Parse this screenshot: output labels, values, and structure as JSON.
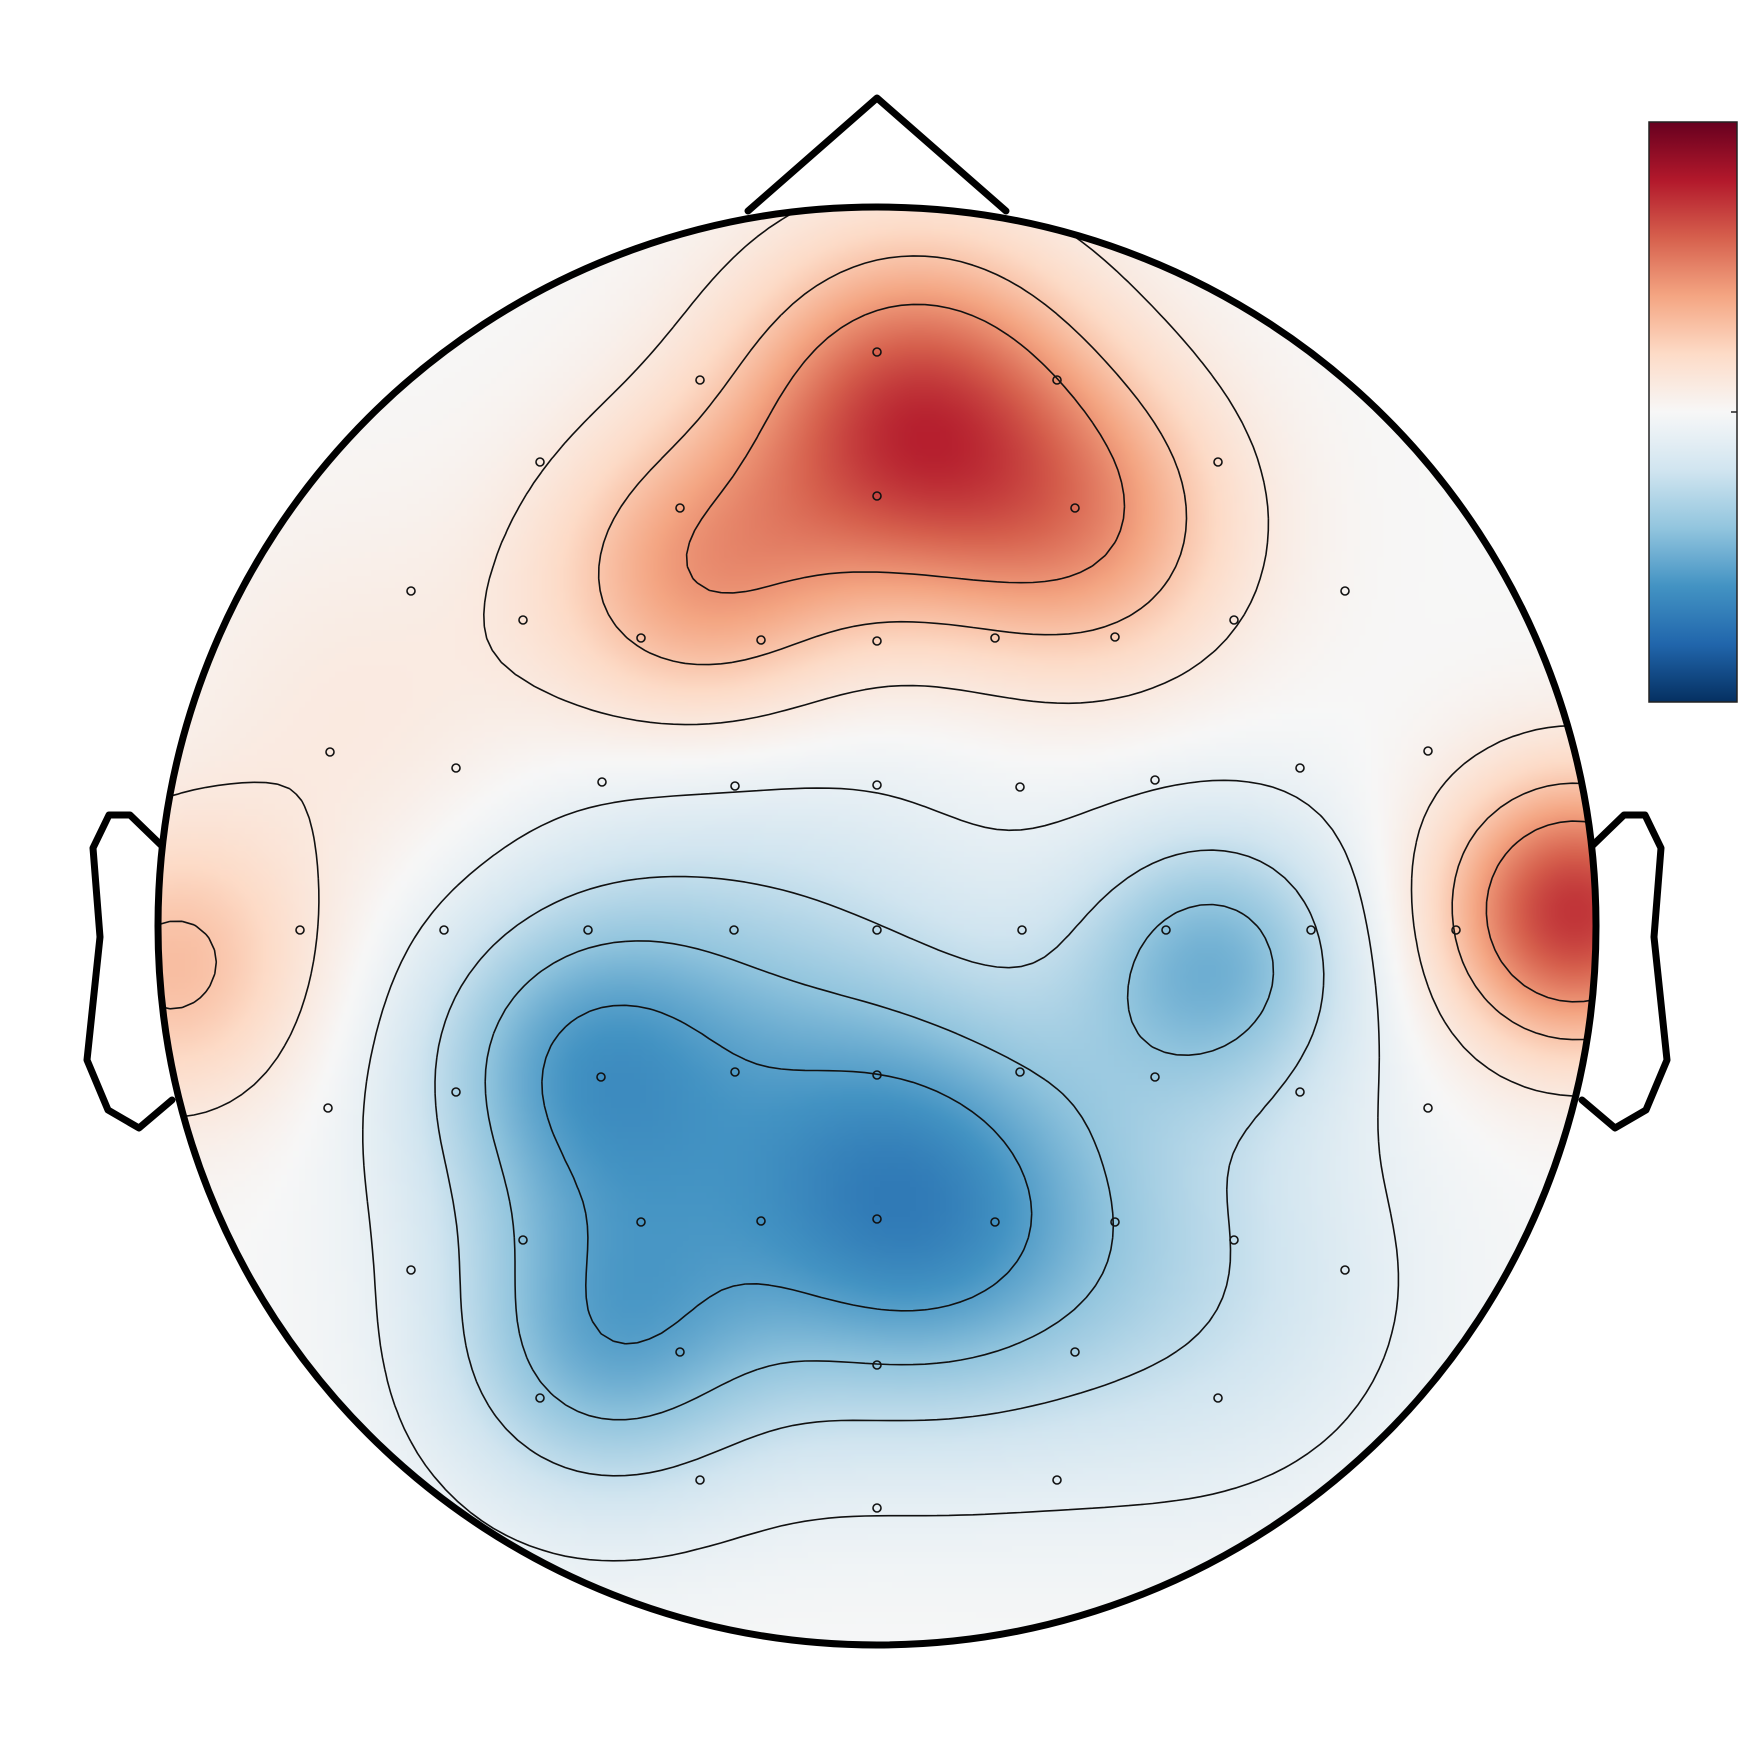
{
  "chart_data": {
    "type": "heatmap",
    "subtype": "eeg-topomap",
    "title": "",
    "colormap": "RdBu_r",
    "colors": {
      "strong_negative": "#053061",
      "negative": "#4393c3",
      "neutral": "#f7f7f7",
      "positive": "#d6604d",
      "strong_positive": "#67001f",
      "outline": "#000000",
      "contour": "#111111"
    },
    "value_range": [
      -1,
      1
    ],
    "colorbar": {
      "present": true,
      "tick_labels": [],
      "placement": "right"
    },
    "sensors_marked": true,
    "contour_lines": true,
    "sources": [
      {
        "x": 0.05,
        "y": 0.7,
        "value": 0.7,
        "spread": 0.17
      },
      {
        "x": -0.25,
        "y": 0.48,
        "value": 0.4,
        "spread": 0.15
      },
      {
        "x": 0.3,
        "y": 0.55,
        "value": 0.35,
        "spread": 0.15
      },
      {
        "x": 0.97,
        "y": 0.02,
        "value": 0.72,
        "spread": 0.13
      },
      {
        "x": -0.98,
        "y": -0.06,
        "value": 0.3,
        "spread": 0.14
      },
      {
        "x": -0.7,
        "y": 0.28,
        "value": 0.1,
        "spread": 0.2
      },
      {
        "x": 0.05,
        "y": -0.4,
        "value": -0.6,
        "spread": 0.2
      },
      {
        "x": -0.38,
        "y": -0.58,
        "value": -0.45,
        "spread": 0.16
      },
      {
        "x": 0.47,
        "y": -0.05,
        "value": -0.45,
        "spread": 0.14
      },
      {
        "x": -0.42,
        "y": -0.2,
        "value": -0.4,
        "spread": 0.16
      },
      {
        "x": -0.2,
        "y": -0.1,
        "value": -0.25,
        "spread": 0.25
      },
      {
        "x": 0.45,
        "y": -0.5,
        "value": -0.2,
        "spread": 0.2
      }
    ],
    "contour_levels": [
      -0.55,
      -0.4,
      -0.25,
      -0.08,
      0.1,
      0.28,
      0.45
    ]
  }
}
